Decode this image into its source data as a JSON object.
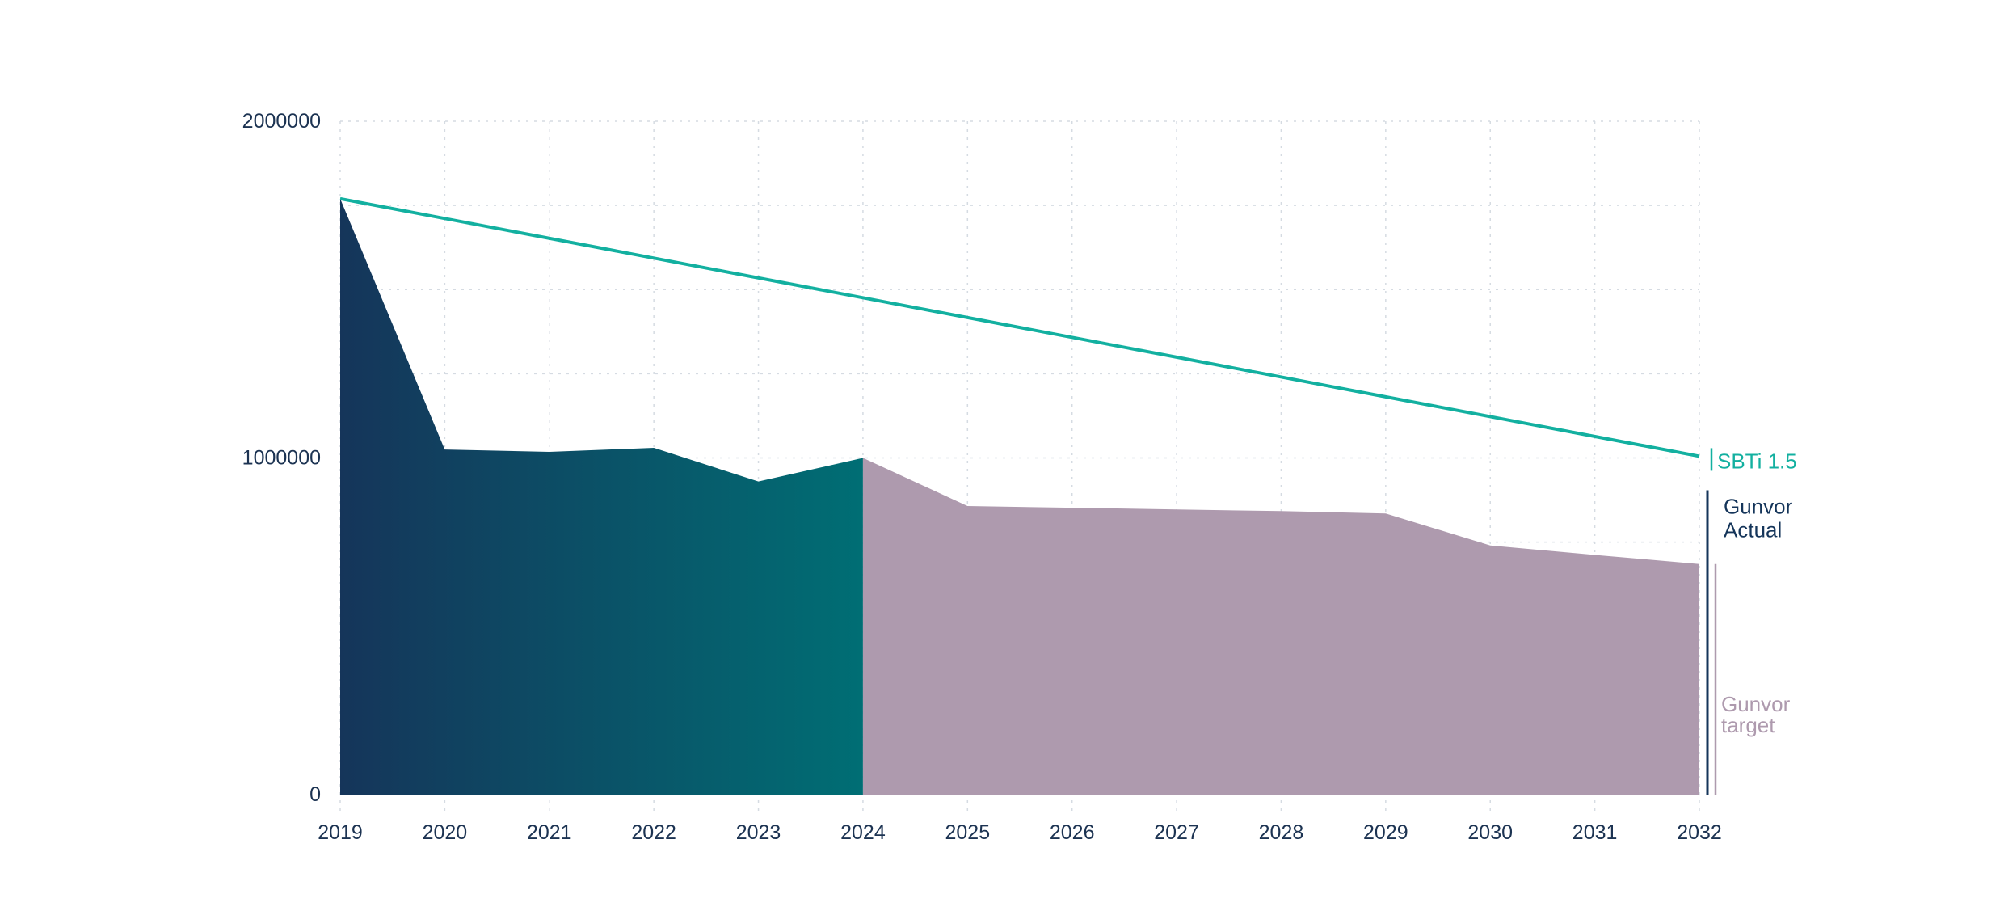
{
  "chart_data": {
    "type": "area",
    "title": "",
    "xlabel": "",
    "ylabel": "",
    "x": [
      2019,
      2020,
      2021,
      2022,
      2023,
      2024,
      2025,
      2026,
      2027,
      2028,
      2029,
      2030,
      2031,
      2032
    ],
    "x_tick_labels": [
      "2019",
      "2020",
      "2021",
      "2022",
      "2023",
      "2024",
      "2025",
      "2026",
      "2027",
      "2028",
      "2029",
      "2030",
      "2031",
      "2032"
    ],
    "ylim": [
      0,
      2000000
    ],
    "y_ticks": [
      0,
      1000000,
      2000000
    ],
    "y_tick_labels": [
      "0",
      "1000000",
      "2000000"
    ],
    "grid": true,
    "legend": "right",
    "series": [
      {
        "name": "Gunvor Actual",
        "kind": "area",
        "colors": [
          "#15355a",
          "#006e74"
        ],
        "x": [
          2019,
          2020,
          2021,
          2022,
          2023,
          2024
        ],
        "values": [
          1770000,
          1025000,
          1018000,
          1030000,
          930000,
          1000000
        ]
      },
      {
        "name": "Gunvor target",
        "kind": "area",
        "colors": [
          "#ae9aae"
        ],
        "x": [
          2024,
          2025,
          2026,
          2027,
          2028,
          2029,
          2030,
          2031,
          2032
        ],
        "values": [
          1000000,
          857000,
          852000,
          847000,
          842000,
          835000,
          740000,
          712000,
          685000
        ]
      },
      {
        "name": "SBTi 1.5",
        "kind": "line",
        "colors": [
          "#13b0a0"
        ],
        "x": [
          2019,
          2032
        ],
        "values": [
          1770000,
          1005000
        ]
      }
    ]
  }
}
